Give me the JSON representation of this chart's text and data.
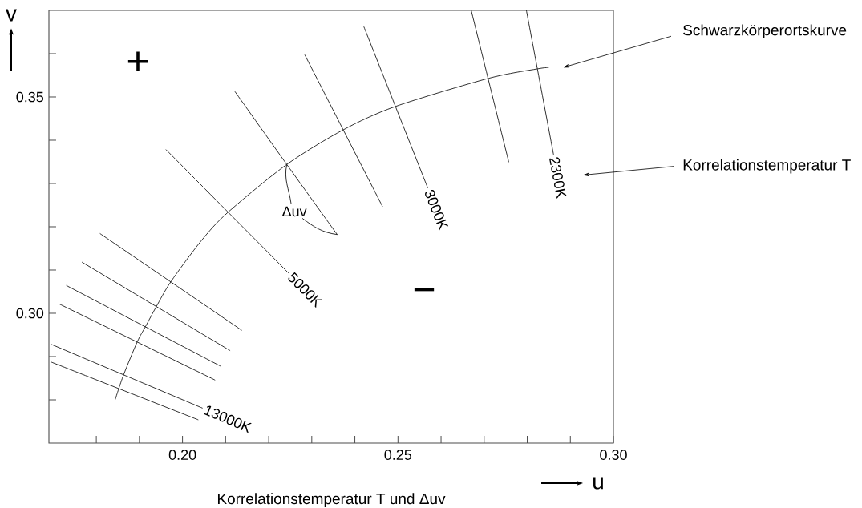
{
  "chart_data": {
    "type": "line",
    "xlabel": "u",
    "ylabel": "v",
    "xlim": [
      0.169,
      0.3
    ],
    "ylim": [
      0.27,
      0.37
    ],
    "xticks": [
      {
        "value": 0.18,
        "label": null
      },
      {
        "value": 0.19,
        "label": null
      },
      {
        "value": 0.2,
        "label": "0.20"
      },
      {
        "value": 0.21,
        "label": null
      },
      {
        "value": 0.22,
        "label": null
      },
      {
        "value": 0.23,
        "label": null
      },
      {
        "value": 0.24,
        "label": null
      },
      {
        "value": 0.25,
        "label": "0.25"
      },
      {
        "value": 0.26,
        "label": null
      },
      {
        "value": 0.27,
        "label": null
      },
      {
        "value": 0.28,
        "label": null
      },
      {
        "value": 0.29,
        "label": null
      },
      {
        "value": 0.3,
        "label": "0.30"
      }
    ],
    "yticks": [
      {
        "value": 0.28,
        "label": null
      },
      {
        "value": 0.29,
        "label": null
      },
      {
        "value": 0.3,
        "label": "0.30"
      },
      {
        "value": 0.31,
        "label": null
      },
      {
        "value": 0.32,
        "label": null
      },
      {
        "value": 0.33,
        "label": null
      },
      {
        "value": 0.34,
        "label": null
      },
      {
        "value": 0.35,
        "label": "0.35"
      },
      {
        "value": 0.36,
        "label": null
      }
    ],
    "series": [
      {
        "name": "Schwarzkörperortskurve",
        "color": "#1a1a1a",
        "x": [
          0.1844,
          0.1863,
          0.1895,
          0.1914,
          0.1939,
          0.1973,
          0.2043,
          0.2105,
          0.2242,
          0.2373,
          0.2494,
          0.271,
          0.2824,
          0.2849
        ],
        "values": [
          0.2801,
          0.2857,
          0.2934,
          0.2969,
          0.3015,
          0.3073,
          0.3167,
          0.3233,
          0.3344,
          0.3424,
          0.3478,
          0.3543,
          0.3565,
          0.3568
        ]
      },
      {
        "color": "#1a1a1a",
        "x": [
          0.1696,
          0.2036
        ],
        "values": [
          0.2887,
          0.2754
        ]
      },
      {
        "color": "#1a1a1a",
        "x": [
          0.1696,
          0.2046
        ],
        "values": [
          0.2928,
          0.2781
        ]
      },
      {
        "color": "#1a1a1a",
        "x": [
          0.1715,
          0.2075
        ],
        "values": [
          0.3021,
          0.2846
        ]
      },
      {
        "color": "#1a1a1a",
        "x": [
          0.1731,
          0.2088
        ],
        "values": [
          0.3064,
          0.2878
        ]
      },
      {
        "color": "#1a1a1a",
        "x": [
          0.1767,
          0.211
        ],
        "values": [
          0.3118,
          0.2914
        ]
      },
      {
        "color": "#1a1a1a",
        "x": [
          0.1809,
          0.2137
        ],
        "values": [
          0.3184,
          0.2961
        ]
      },
      {
        "color": "#1a1a1a",
        "x": [
          0.1962,
          0.2246
        ],
        "values": [
          0.3378,
          0.3093
        ]
      },
      {
        "color": "#1a1a1a",
        "x": [
          0.2122,
          0.2242,
          0.2359
        ],
        "values": [
          0.3512,
          0.3344,
          0.3182
        ]
      },
      {
        "color": "#1a1a1a",
        "x": [
          0.2284,
          0.2464
        ],
        "values": [
          0.3597,
          0.3247
        ]
      },
      {
        "color": "#1a1a1a",
        "x": [
          0.2421,
          0.2569
        ],
        "values": [
          0.3662,
          0.329
        ]
      },
      {
        "color": "#1a1a1a",
        "x": [
          0.267,
          0.2757
        ],
        "values": [
          0.37,
          0.335
        ]
      },
      {
        "color": "#1a1a1a",
        "x": [
          0.2798,
          0.2861
        ],
        "values": [
          0.37,
          0.3367
        ]
      }
    ],
    "annotations": [
      "+",
      "Korrelationstemperatur T",
      {
        "text": "Δuv",
        "x": 0.2242,
        "y": 0.3344
      },
      {
        "text": "3000K",
        "x": 0.2569,
        "y": 0.329
      },
      {
        "text": "2300K",
        "x": 0.2861,
        "y": 0.3367
      },
      {
        "text": "5000K",
        "x": 0.2246,
        "y": 0.3093
      },
      "−",
      {
        "text": "13000K",
        "x": 0.2046,
        "y": 0.2781
      },
      "Korrelationstemperatur T und Δuv"
    ]
  }
}
